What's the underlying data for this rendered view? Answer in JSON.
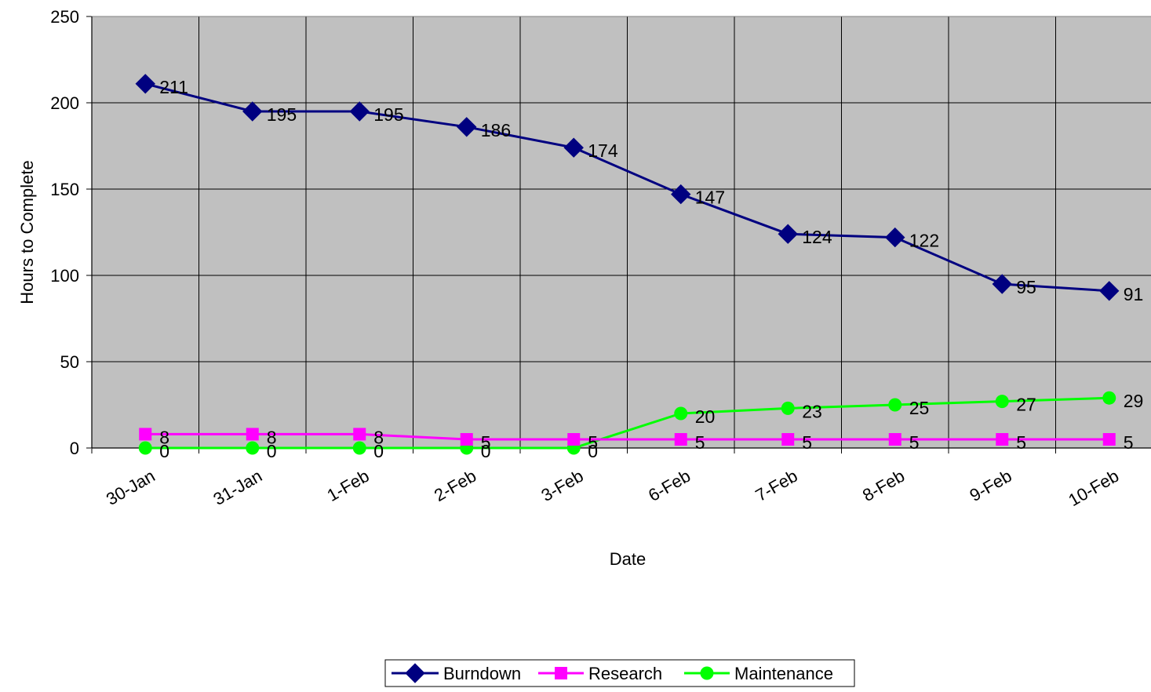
{
  "chart_data": {
    "type": "line",
    "title": "",
    "xlabel": "Date",
    "ylabel": "Hours to Complete",
    "ylim": [
      0,
      250
    ],
    "yticks": [
      0,
      50,
      100,
      150,
      200,
      250
    ],
    "categories": [
      "30-Jan",
      "31-Jan",
      "1-Feb",
      "2-Feb",
      "3-Feb",
      "6-Feb",
      "7-Feb",
      "8-Feb",
      "9-Feb",
      "10-Feb"
    ],
    "grid": true,
    "legend_position": "bottom",
    "plot_background": "#C0C0C0",
    "series": [
      {
        "name": "Burndown",
        "values": [
          211,
          195,
          195,
          186,
          174,
          147,
          124,
          122,
          95,
          91
        ],
        "color": "#000080",
        "marker": "diamond"
      },
      {
        "name": "Research",
        "values": [
          8,
          8,
          8,
          5,
          5,
          5,
          5,
          5,
          5,
          5
        ],
        "color": "#FF00FF",
        "marker": "square"
      },
      {
        "name": "Maintenance",
        "values": [
          0,
          0,
          0,
          0,
          0,
          20,
          23,
          25,
          27,
          29
        ],
        "color": "#00FF00",
        "marker": "circle"
      }
    ]
  }
}
